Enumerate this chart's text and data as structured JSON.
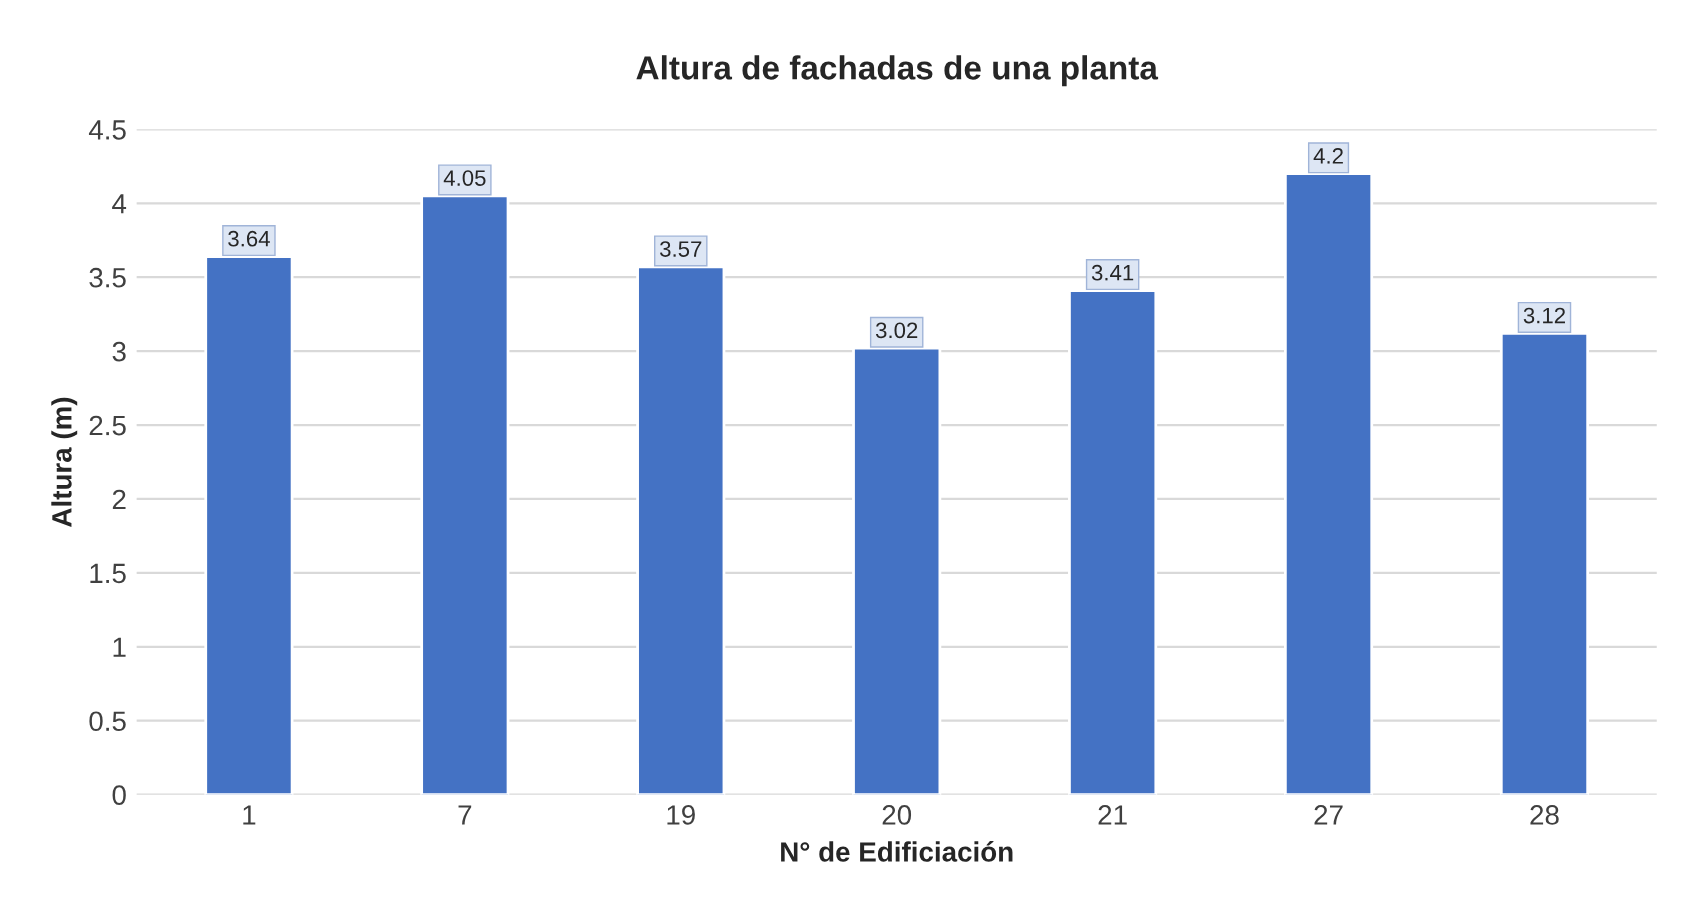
{
  "chart_data": {
    "type": "bar",
    "title": "Altura de fachadas de una planta",
    "xlabel": "N° de Edificiación",
    "ylabel": "Altura (m)",
    "categories": [
      "1",
      "7",
      "19",
      "20",
      "21",
      "27",
      "28"
    ],
    "values": [
      3.64,
      4.05,
      3.57,
      3.02,
      3.41,
      4.2,
      3.12
    ],
    "color": "#4472c4",
    "ylim": [
      0,
      4.5
    ],
    "yticks": [
      0,
      0.5,
      1,
      1.5,
      2,
      2.5,
      3,
      3.5,
      4,
      4.5
    ],
    "grid": "y",
    "data_labels": true
  }
}
